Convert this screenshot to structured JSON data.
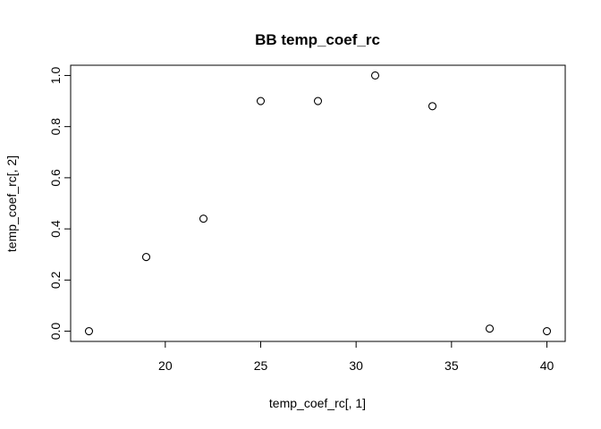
{
  "chart_data": {
    "type": "scatter",
    "title": "BB temp_coef_rc",
    "xlabel": "temp_coef_rc[, 1]",
    "ylabel": "temp_coef_rc[, 2]",
    "xlim": [
      15.04,
      40.96
    ],
    "ylim": [
      -0.04,
      1.04
    ],
    "x_ticks": [
      20,
      25,
      30,
      35,
      40
    ],
    "y_ticks": [
      0.0,
      0.2,
      0.4,
      0.6,
      0.8,
      1.0
    ],
    "x_tick_labels": [
      "20",
      "25",
      "30",
      "35",
      "40"
    ],
    "y_tick_labels": [
      "0.0",
      "0.2",
      "0.4",
      "0.6",
      "0.8",
      "1.0"
    ],
    "points": [
      {
        "x": 16,
        "y": 0.0
      },
      {
        "x": 19,
        "y": 0.29
      },
      {
        "x": 22,
        "y": 0.44
      },
      {
        "x": 25,
        "y": 0.9
      },
      {
        "x": 28,
        "y": 0.9
      },
      {
        "x": 31,
        "y": 1.0
      },
      {
        "x": 34,
        "y": 0.88
      },
      {
        "x": 37,
        "y": 0.01
      },
      {
        "x": 40,
        "y": 0.0
      }
    ],
    "marker": "open-circle",
    "grid": false,
    "legend": "none",
    "colors": {
      "points": "#000000",
      "axes": "#000000",
      "background": "#ffffff"
    }
  }
}
